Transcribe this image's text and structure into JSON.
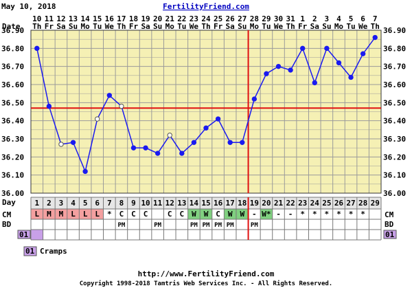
{
  "header": {
    "date_stamp": "May 10, 2018",
    "site_title": "FertilityFriend.com"
  },
  "row_labels": {
    "date": "Date",
    "day": "Day",
    "cm": "CM",
    "bd": "BD",
    "symptom_code": "01"
  },
  "legend": {
    "code": "01",
    "label": "Cramps"
  },
  "footer": {
    "url": "http://www.FertilityFriend.com",
    "copyright": "Copyright 1998-2018 Tamtris Web Services Inc. - All Rights Reserved."
  },
  "colors": {
    "plot_bg": "#f5f0b4",
    "grid": "#9a9a9a",
    "line": "#1a1af0",
    "coverline": "#e01010",
    "menstruation": "#f4a0a0",
    "eggwhite": "#80d080",
    "symptom": "#c8a0e8"
  },
  "chart_data": {
    "type": "line",
    "title": "",
    "xlabel": "Day",
    "ylabel": "",
    "ylim": [
      36.0,
      36.9
    ],
    "y_ticks": [
      "36.00",
      "36.10",
      "36.20",
      "36.30",
      "36.40",
      "36.50",
      "36.60",
      "36.70",
      "36.80",
      "36.90"
    ],
    "dates": [
      "10",
      "11",
      "12",
      "13",
      "14",
      "15",
      "16",
      "17",
      "18",
      "19",
      "20",
      "21",
      "22",
      "23",
      "24",
      "25",
      "26",
      "27",
      "28",
      "29",
      "30",
      "31",
      "1",
      "2",
      "3",
      "4",
      "5",
      "6",
      "7"
    ],
    "weekdays": [
      "Th",
      "Fr",
      "Sa",
      "Su",
      "Mo",
      "Tu",
      "We",
      "Th",
      "Fr",
      "Sa",
      "Su",
      "Mo",
      "Tu",
      "We",
      "Th",
      "Fr",
      "Sa",
      "Su",
      "Mo",
      "Tu",
      "We",
      "Th",
      "Fr",
      "Sa",
      "Su",
      "Mo",
      "Tu",
      "We",
      "Th"
    ],
    "cycle_days": [
      1,
      2,
      3,
      4,
      5,
      6,
      7,
      8,
      9,
      10,
      11,
      12,
      13,
      14,
      15,
      16,
      17,
      18,
      19,
      20,
      21,
      22,
      23,
      24,
      25,
      26,
      27,
      28,
      29
    ],
    "series": [
      {
        "values": [
          36.8,
          36.48,
          36.27,
          36.28,
          36.12,
          36.41,
          36.54,
          36.48,
          36.25,
          36.25,
          36.22,
          36.32,
          36.22,
          36.28,
          36.36,
          36.41,
          36.28,
          36.28,
          36.52,
          36.66,
          36.7,
          36.68,
          36.8,
          36.61,
          36.8,
          36.72,
          36.64,
          36.77,
          36.86
        ],
        "open_points": [
          2,
          5,
          7,
          11
        ]
      }
    ],
    "coverline": 36.47,
    "ovulation_day": 18,
    "cervical_fluid": [
      "L",
      "M",
      "M",
      "L",
      "L",
      "L",
      "*",
      "C",
      "C",
      "C",
      "",
      "C",
      "C",
      "W",
      "W",
      "C",
      "W",
      "W",
      "-",
      "W*",
      "-",
      "-",
      "*",
      "*",
      "*",
      "*",
      "*",
      "*",
      ""
    ],
    "intercourse": [
      "",
      "",
      "",
      "",
      "",
      "",
      "",
      "PM",
      "",
      "",
      "PM",
      "",
      "",
      "PM",
      "PM",
      "PM",
      "PM",
      "",
      "PM",
      "",
      "",
      "",
      "",
      "",
      "",
      "",
      "",
      "",
      ""
    ],
    "symptoms_01": [
      1
    ]
  }
}
